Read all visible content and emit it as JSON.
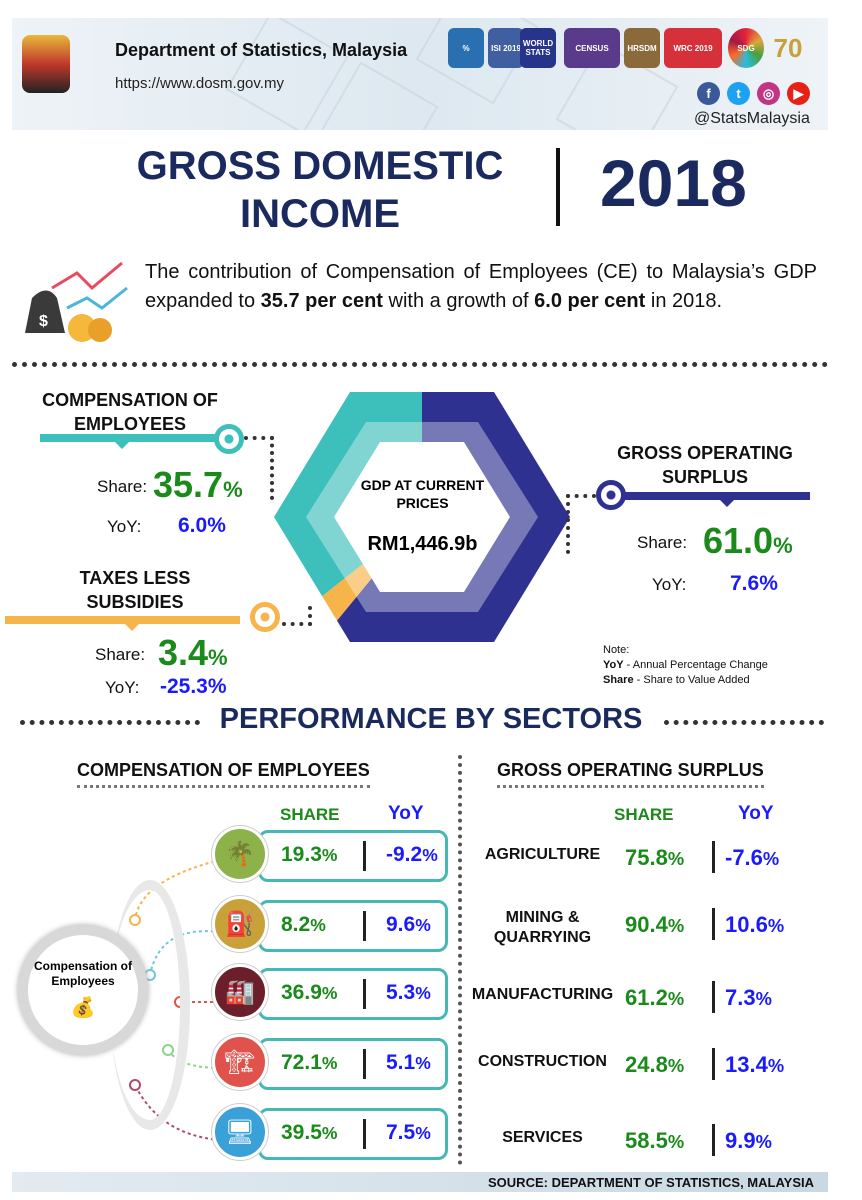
{
  "header": {
    "department": "Department of Statistics, Malaysia",
    "url": "https://www.dosm.gov.my",
    "handle": "@StatsMalaysia",
    "logos": [
      "%",
      "ISI 2019",
      "WORLD STATS",
      "CENSUS",
      "HRSDM",
      "WRC 2019",
      "SDG",
      "70"
    ],
    "social_icons": [
      "facebook-icon",
      "twitter-icon",
      "instagram-icon",
      "youtube-icon"
    ]
  },
  "title": {
    "line1": "GROSS DOMESTIC",
    "line2": "INCOME",
    "year": "2018"
  },
  "intro": {
    "part1": "The contribution of Compensation of Employees (CE) to Malaysia’s GDP expanded to ",
    "bold1": "35.7 per cent",
    "part2": " with a growth of ",
    "bold2": "6.0 per cent",
    "part3": " in 2018."
  },
  "gdp": {
    "label": "GDP AT CURRENT PRICES",
    "value": "RM1,446.9b"
  },
  "components": {
    "ce": {
      "label": "COMPENSATION OF EMPLOYEES",
      "share_label": "Share:",
      "share": "35.7",
      "pct": "%",
      "yoy_label": "YoY:",
      "yoy": "6.0%",
      "color": "#3dbfbc"
    },
    "gos": {
      "label": "GROSS OPERATING SURPLUS",
      "share_label": "Share:",
      "share": "61.0",
      "pct": "%",
      "yoy_label": "YoY:",
      "yoy": "7.6%",
      "color": "#2e3190"
    },
    "tax": {
      "label": "TAXES LESS SUBSIDIES",
      "share_label": "Share:",
      "share": "3.4",
      "pct": "%",
      "yoy_label": "YoY:",
      "yoy": "-25.3%",
      "color": "#f6b44a"
    }
  },
  "chart_data": {
    "type": "pie",
    "title": "GDP AT CURRENT PRICES",
    "categories": [
      "Gross Operating Surplus",
      "Taxes Less Subsidies",
      "Compensation of Employees"
    ],
    "values": [
      61.0,
      3.4,
      35.7
    ]
  },
  "note": {
    "title": "Note:",
    "yoy_key": "YoY",
    "yoy_desc": " -  Annual Percentage Change",
    "share_key": "Share",
    "share_desc": " - Share to Value Added"
  },
  "performance": {
    "title": "PERFORMANCE BY SECTORS",
    "ce": {
      "heading": "COMPENSATION OF EMPLOYEES",
      "share_h": "SHARE",
      "yoy_h": "YoY",
      "center_label": "Compensation of Employees",
      "rows": [
        {
          "share": "19.3",
          "yoy": "-9.2"
        },
        {
          "share": "8.2",
          "yoy": "9.6"
        },
        {
          "share": "36.9",
          "yoy": "5.3"
        },
        {
          "share": "72.1",
          "yoy": "5.1"
        },
        {
          "share": "39.5",
          "yoy": "7.5"
        }
      ]
    },
    "gos": {
      "heading": "GROSS OPERATING SURPLUS",
      "share_h": "SHARE",
      "yoy_h": "YoY",
      "rows": [
        {
          "sector": "AGRICULTURE",
          "share": "75.8",
          "yoy": "-7.6"
        },
        {
          "sector": "MINING & QUARRYING",
          "share": "90.4",
          "yoy": "10.6"
        },
        {
          "sector": "MANUFACTURING",
          "share": "61.2",
          "yoy": "7.3"
        },
        {
          "sector": "CONSTRUCTION",
          "share": "24.8",
          "yoy": "13.4"
        },
        {
          "sector": "SERVICES",
          "share": "58.5",
          "yoy": "9.9"
        }
      ]
    },
    "pct": "%"
  },
  "source": "SOURCE: DEPARTMENT OF STATISTICS, MALAYSIA"
}
